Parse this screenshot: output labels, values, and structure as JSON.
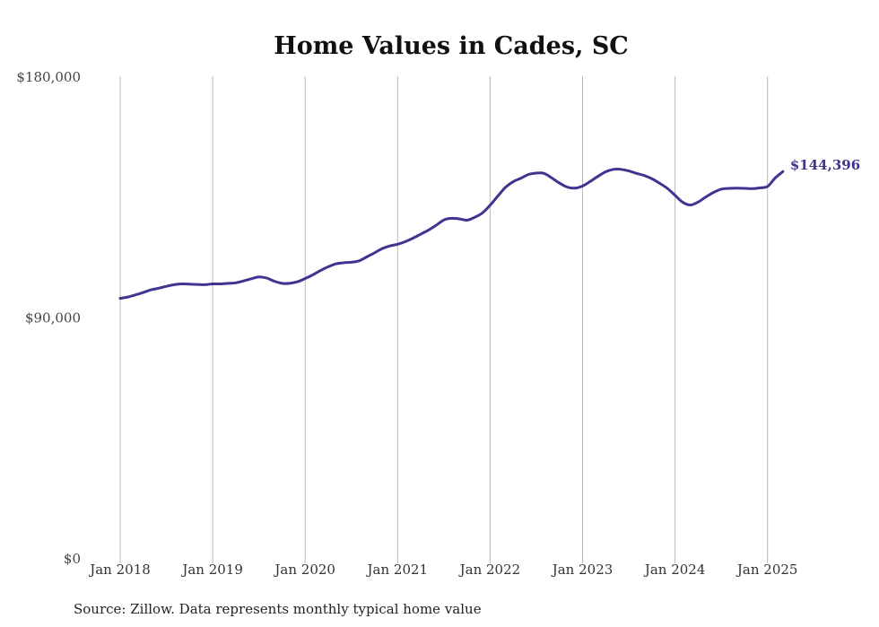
{
  "chart_data": {
    "type": "line",
    "title": "Home Values in Cades, SC",
    "xlabel": "",
    "ylabel": "",
    "ylim": [
      0,
      180000
    ],
    "y_ticks": [
      {
        "value": 0,
        "label": "$0"
      },
      {
        "value": 90000,
        "label": "$90,000"
      },
      {
        "value": 180000,
        "label": "$180,000"
      }
    ],
    "x_ticks": [
      {
        "value": 2018.0,
        "label": "Jan 2018"
      },
      {
        "value": 2019.0,
        "label": "Jan 2019"
      },
      {
        "value": 2020.0,
        "label": "Jan 2020"
      },
      {
        "value": 2021.0,
        "label": "Jan 2021"
      },
      {
        "value": 2022.0,
        "label": "Jan 2022"
      },
      {
        "value": 2023.0,
        "label": "Jan 2023"
      },
      {
        "value": 2024.0,
        "label": "Jan 2024"
      },
      {
        "value": 2025.0,
        "label": "Jan 2025"
      }
    ],
    "xlim": [
      2018.0,
      2025.25
    ],
    "grid": "vertical",
    "line_color": "#3d3590",
    "end_label": "$144,396",
    "series": [
      {
        "x": [
          "Jan 2018",
          "Feb 2018",
          "Mar 2018",
          "Apr 2018",
          "May 2018",
          "Jun 2018",
          "Jul 2018",
          "Aug 2018",
          "Sep 2018",
          "Oct 2018",
          "Nov 2018",
          "Dec 2018",
          "Jan 2019",
          "Feb 2019",
          "Mar 2019",
          "Apr 2019",
          "May 2019",
          "Jun 2019",
          "Jul 2019",
          "Aug 2019",
          "Sep 2019",
          "Oct 2019",
          "Nov 2019",
          "Dec 2019",
          "Jan 2020",
          "Feb 2020",
          "Mar 2020",
          "Apr 2020",
          "May 2020",
          "Jun 2020",
          "Jul 2020",
          "Aug 2020",
          "Sep 2020",
          "Oct 2020",
          "Nov 2020",
          "Dec 2020",
          "Jan 2021",
          "Feb 2021",
          "Mar 2021",
          "Apr 2021",
          "May 2021",
          "Jun 2021",
          "Jul 2021",
          "Aug 2021",
          "Sep 2021",
          "Oct 2021",
          "Nov 2021",
          "Dec 2021",
          "Jan 2022",
          "Feb 2022",
          "Mar 2022",
          "Apr 2022",
          "May 2022",
          "Jun 2022",
          "Jul 2022",
          "Aug 2022",
          "Sep 2022",
          "Oct 2022",
          "Nov 2022",
          "Dec 2022",
          "Jan 2023",
          "Feb 2023",
          "Mar 2023",
          "Apr 2023",
          "May 2023",
          "Jun 2023",
          "Jul 2023",
          "Aug 2023",
          "Sep 2023",
          "Oct 2023",
          "Nov 2023",
          "Dec 2023",
          "Jan 2024",
          "Feb 2024",
          "Mar 2024",
          "Apr 2024",
          "May 2024",
          "Jun 2024",
          "Jul 2024",
          "Aug 2024",
          "Sep 2024",
          "Oct 2024",
          "Nov 2024",
          "Dec 2024",
          "Jan 2025",
          "Feb 2025",
          "Mar 2025"
        ],
        "values": [
          97000,
          97500,
          98300,
          99200,
          100200,
          100800,
          101500,
          102100,
          102400,
          102300,
          102200,
          102100,
          102400,
          102400,
          102600,
          102800,
          103500,
          104300,
          105000,
          104600,
          103400,
          102600,
          102600,
          103200,
          104400,
          105800,
          107400,
          108800,
          109900,
          110300,
          110500,
          111000,
          112500,
          114000,
          115600,
          116600,
          117200,
          118200,
          119500,
          121000,
          122500,
          124300,
          126300,
          126900,
          126700,
          126200,
          127300,
          128900,
          131800,
          135200,
          138500,
          140600,
          141900,
          143300,
          143800,
          143700,
          142000,
          140100,
          138600,
          138200,
          139000,
          140700,
          142600,
          144300,
          145200,
          145200,
          144600,
          143700,
          142900,
          141700,
          140000,
          138100,
          135500,
          132900,
          131900,
          133000,
          134900,
          136600,
          137800,
          138100,
          138200,
          138100,
          138000,
          138300,
          138800,
          142000,
          144396
        ]
      }
    ]
  },
  "footer": {
    "source": "Source: Zillow. Data represents monthly typical home value"
  }
}
